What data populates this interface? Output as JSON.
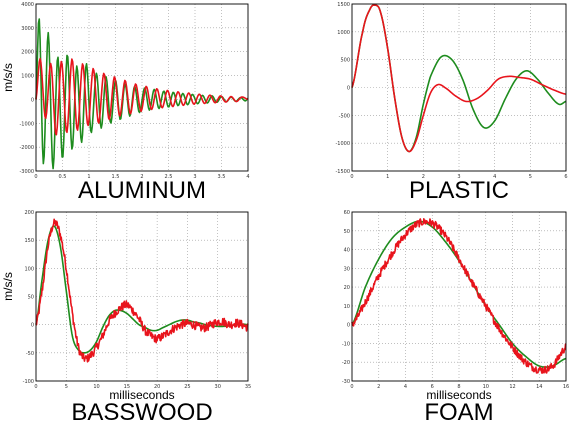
{
  "palette": {
    "model": "#1e8c1e",
    "measured": "#e8141c"
  },
  "chart_data": [
    {
      "type": "line",
      "title": "ALUMINUM",
      "xlabel": "",
      "ylabel": "m/s/s",
      "xlim": [
        0,
        4
      ],
      "ylim": [
        -3000,
        4000
      ],
      "xticks": [
        0,
        0.5,
        1,
        1.5,
        2,
        2.5,
        3,
        3.5,
        4
      ],
      "xtick_labels": [
        "0",
        "0.5",
        "1",
        "1.5",
        "2",
        "2.5",
        "3",
        "3.5",
        "4"
      ],
      "yticks": [
        -3000,
        -2000,
        -1000,
        0,
        1000,
        2000,
        3000,
        4000
      ],
      "ytick_labels": [
        "-3000",
        "-2000",
        "-1000",
        "0",
        "1000",
        "2000",
        "3000",
        "4000"
      ],
      "grid": true,
      "series": [
        {
          "color": "#1e8c1e",
          "x": [
            0,
            0.06,
            0.14,
            0.23,
            0.32,
            0.41,
            0.5,
            0.59,
            0.68,
            0.77,
            0.86,
            0.95,
            1.04,
            1.14,
            1.23,
            1.32,
            1.41,
            1.5,
            1.59,
            1.68,
            1.77,
            1.86,
            1.95,
            2.05,
            2.14,
            2.23,
            2.32,
            2.41,
            2.5,
            2.59,
            2.68,
            2.77,
            2.86,
            2.95,
            3.05,
            3.14,
            3.23,
            3.32,
            3.41,
            3.5,
            3.59,
            3.68,
            3.77,
            3.86,
            3.95,
            4
          ],
          "y": [
            0,
            3400,
            -2700,
            2800,
            -2900,
            1800,
            -2500,
            1900,
            -2100,
            1400,
            -1800,
            1500,
            -1400,
            1100,
            -1200,
            950,
            -1000,
            800,
            -850,
            650,
            -700,
            550,
            -550,
            480,
            -450,
            420,
            -380,
            350,
            -320,
            300,
            -260,
            250,
            -220,
            210,
            -180,
            170,
            -150,
            150,
            -120,
            120,
            -100,
            100,
            -80,
            80,
            -60,
            50
          ]
        },
        {
          "color": "#e8141c",
          "x": [
            0,
            0.08,
            0.18,
            0.28,
            0.38,
            0.48,
            0.58,
            0.68,
            0.78,
            0.88,
            0.98,
            1.08,
            1.18,
            1.28,
            1.38,
            1.48,
            1.58,
            1.68,
            1.78,
            1.88,
            1.98,
            2.08,
            2.18,
            2.28,
            2.38,
            2.48,
            2.58,
            2.68,
            2.78,
            2.88,
            2.98,
            3.08,
            3.18,
            3.28,
            3.38,
            3.48,
            3.58,
            3.68,
            3.78,
            3.88,
            4
          ],
          "y": [
            0,
            1700,
            -800,
            1500,
            -1500,
            1600,
            -1400,
            1700,
            -1300,
            1500,
            -1100,
            1300,
            -1000,
            1100,
            -850,
            950,
            -700,
            800,
            -600,
            650,
            -500,
            550,
            -420,
            450,
            -350,
            380,
            -300,
            320,
            -250,
            270,
            -200,
            220,
            -170,
            180,
            -140,
            150,
            -110,
            120,
            -90,
            100,
            0
          ]
        }
      ]
    },
    {
      "type": "line",
      "title": "PLASTIC",
      "xlabel": "",
      "ylabel": "",
      "xlim": [
        0,
        6
      ],
      "ylim": [
        -1500,
        1500
      ],
      "xticks": [
        0,
        1,
        2,
        3,
        4,
        5,
        6
      ],
      "xtick_labels": [
        "0",
        "1",
        "2",
        "3",
        "4",
        "5",
        "6"
      ],
      "yticks": [
        -1500,
        -1000,
        -500,
        0,
        500,
        1000,
        1500
      ],
      "ytick_labels": [
        "-1500",
        "-1000",
        "-500",
        "0",
        "500",
        "1000",
        "1500"
      ],
      "grid": true,
      "series": [
        {
          "color": "#1e8c1e",
          "x": [
            0,
            0.3,
            0.5,
            0.65,
            0.8,
            1.0,
            1.2,
            1.4,
            1.6,
            1.8,
            2.0,
            2.2,
            2.5,
            2.8,
            3.1,
            3.4,
            3.7,
            4.0,
            4.3,
            4.6,
            4.9,
            5.2,
            5.5,
            5.8,
            6.0
          ],
          "y": [
            0,
            1000,
            1400,
            1480,
            1350,
            700,
            -200,
            -900,
            -1150,
            -900,
            -300,
            200,
            550,
            500,
            150,
            -400,
            -720,
            -600,
            -200,
            150,
            300,
            150,
            -100,
            -300,
            -250
          ]
        },
        {
          "color": "#e8141c",
          "x": [
            0,
            0.3,
            0.5,
            0.65,
            0.8,
            1.0,
            1.2,
            1.4,
            1.6,
            1.8,
            2.0,
            2.2,
            2.4,
            2.6,
            2.9,
            3.2,
            3.5,
            3.8,
            4.1,
            4.4,
            4.7,
            5.0,
            5.3,
            5.6,
            6.0
          ],
          "y": [
            0,
            1000,
            1400,
            1480,
            1350,
            700,
            -200,
            -900,
            -1150,
            -950,
            -500,
            -100,
            50,
            0,
            -150,
            -250,
            -200,
            -50,
            150,
            200,
            180,
            150,
            60,
            -30,
            -120
          ]
        }
      ]
    },
    {
      "type": "line",
      "title": "BASSWOOD",
      "xlabel": "milliseconds",
      "ylabel": "m/s/s",
      "xlim": [
        0,
        35
      ],
      "ylim": [
        -100,
        200
      ],
      "xticks": [
        0,
        5,
        10,
        15,
        20,
        25,
        30,
        35
      ],
      "xtick_labels": [
        "0",
        "5",
        "10",
        "15",
        "20",
        "25",
        "30",
        "35"
      ],
      "yticks": [
        -100,
        -50,
        0,
        50,
        100,
        150,
        200
      ],
      "ytick_labels": [
        "-100",
        "-50",
        "0",
        "50",
        "100",
        "150",
        "200"
      ],
      "grid": true,
      "series": [
        {
          "color": "#1e8c1e",
          "x": [
            0,
            1,
            2,
            3,
            4,
            5,
            6,
            7,
            8,
            9,
            10,
            11,
            12,
            13,
            14,
            15,
            16,
            17,
            18,
            19,
            20,
            21,
            22,
            23,
            24,
            25,
            26,
            27,
            28,
            29,
            30,
            31,
            32,
            33,
            34,
            35
          ],
          "y": [
            0,
            80,
            150,
            175,
            140,
            60,
            -20,
            -45,
            -50,
            -45,
            -30,
            -5,
            15,
            25,
            25,
            20,
            10,
            0,
            -5,
            -10,
            -10,
            -5,
            0,
            5,
            8,
            8,
            5,
            3,
            0,
            -2,
            -3,
            -3,
            -2,
            0,
            1,
            0
          ]
        },
        {
          "color": "#e8141c",
          "x": [
            0,
            1,
            2,
            3,
            4,
            5,
            6,
            7,
            8,
            9,
            10,
            11,
            12,
            13,
            14,
            15,
            16,
            17,
            18,
            19,
            20,
            21,
            22,
            23,
            24,
            25,
            26,
            27,
            28,
            29,
            30,
            31,
            32,
            33,
            34,
            35
          ],
          "y": [
            0,
            60,
            140,
            180,
            160,
            100,
            20,
            -40,
            -60,
            -55,
            -40,
            -20,
            5,
            20,
            30,
            35,
            25,
            10,
            -10,
            -20,
            -25,
            -20,
            -12,
            -5,
            0,
            2,
            0,
            -5,
            -5,
            0,
            5,
            5,
            0,
            3,
            0,
            -5
          ]
        }
      ]
    },
    {
      "type": "line",
      "title": "FOAM",
      "xlabel": "milliseconds",
      "ylabel": "",
      "xlim": [
        0,
        16
      ],
      "ylim": [
        -30,
        60
      ],
      "xticks": [
        0,
        2,
        4,
        6,
        8,
        10,
        12,
        14,
        16
      ],
      "xtick_labels": [
        "0",
        "2",
        "4",
        "6",
        "8",
        "10",
        "12",
        "14",
        "16"
      ],
      "yticks": [
        -30,
        -20,
        -10,
        0,
        10,
        20,
        30,
        40,
        50,
        60
      ],
      "ytick_labels": [
        "-30",
        "-20",
        "-10",
        "0",
        "10",
        "20",
        "30",
        "40",
        "50",
        "60"
      ],
      "grid": true,
      "series": [
        {
          "color": "#1e8c1e",
          "x": [
            0,
            1,
            2,
            3,
            4,
            5,
            6,
            7,
            8,
            9,
            10,
            11,
            12,
            13,
            14,
            15,
            16
          ],
          "y": [
            0,
            20,
            35,
            46,
            52,
            55,
            52,
            44,
            34,
            22,
            10,
            0,
            -10,
            -17,
            -22,
            -22,
            -18
          ]
        },
        {
          "color": "#e8141c",
          "x": [
            0,
            1,
            2,
            3,
            4,
            5,
            6,
            7,
            8,
            9,
            10,
            11,
            12,
            13,
            14,
            15,
            16
          ],
          "y": [
            0,
            12,
            26,
            38,
            48,
            54,
            54,
            47,
            35,
            22,
            10,
            -2,
            -12,
            -20,
            -24,
            -22,
            -12
          ]
        }
      ]
    }
  ]
}
